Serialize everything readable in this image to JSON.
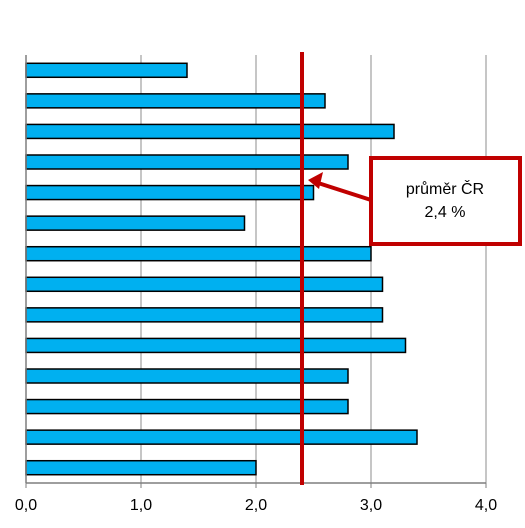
{
  "chart_data": {
    "type": "bar",
    "orientation": "horizontal",
    "values": [
      1.4,
      2.6,
      3.2,
      2.8,
      2.5,
      1.9,
      3.0,
      3.1,
      3.1,
      3.3,
      2.8,
      2.8,
      3.4,
      2.0
    ],
    "xlim": [
      0,
      4.0
    ],
    "x_ticks": [
      "0,0",
      "1,0",
      "2,0",
      "3,0",
      "4,0"
    ],
    "x_tick_values": [
      0,
      1,
      2,
      3,
      4
    ],
    "grid": "vertical",
    "bar_color": "#00B0F0",
    "bar_edge_color": "#000000",
    "reference_line": {
      "value": 2.4,
      "color": "#C00000",
      "annotation": {
        "line1": "průměr ČR",
        "line2": "2,4 %",
        "border_color": "#C00000"
      }
    }
  }
}
